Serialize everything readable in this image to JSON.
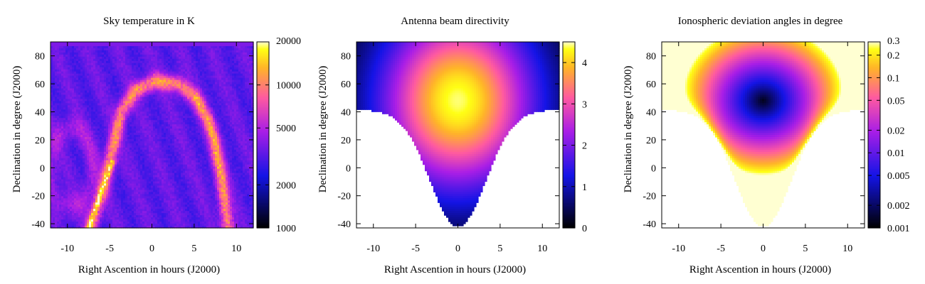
{
  "chart_data": [
    {
      "type": "heatmap",
      "title": "Sky temperature in K",
      "xlabel": "Right Ascention in hours (J2000)",
      "ylabel": "Declination in degree (J2000)",
      "xlim": [
        -12,
        12
      ],
      "ylim": [
        -43,
        90
      ],
      "xticks": [
        -10,
        -5,
        0,
        5,
        10
      ],
      "yticks": [
        -40,
        -20,
        0,
        20,
        40,
        60,
        80
      ],
      "colorbar": {
        "scale": "log",
        "range": [
          1000,
          20000
        ],
        "ticks": [
          1000,
          2000,
          5000,
          10000,
          20000
        ],
        "colormap": "black-blue-magenta-orange-yellow-white"
      },
      "features": [
        "Galactic plane band reaching ~20000 K near RA -6 h, Dec -40 to 0",
        "Arc of elevated temperature through RA 0 h, Dec 60",
        "Background ~2000 K"
      ]
    },
    {
      "type": "heatmap",
      "title": "Antenna beam directivity",
      "xlabel": "Right Ascention in hours (J2000)",
      "ylabel": "Declination in degree (J2000)",
      "xlim": [
        -12,
        12
      ],
      "ylim": [
        -43,
        90
      ],
      "xticks": [
        -10,
        -5,
        0,
        5,
        10
      ],
      "yticks": [
        -40,
        -20,
        0,
        20,
        40,
        60,
        80
      ],
      "colorbar": {
        "scale": "linear",
        "range": [
          0,
          4.5
        ],
        "ticks": [
          0,
          1,
          2,
          3,
          4
        ],
        "colormap": "black-blue-magenta-orange-yellow-white"
      },
      "features": [
        "Peak directivity ~4.4 at RA 0 h, Dec ~48",
        "Region below the horizon left blank (white)"
      ]
    },
    {
      "type": "heatmap",
      "title": "Ionospheric deviation angles in degree",
      "xlabel": "Right Ascention in hours (J2000)",
      "ylabel": "Declination in degree (J2000)",
      "xlim": [
        -12,
        12
      ],
      "ylim": [
        -43,
        90
      ],
      "xticks": [
        -10,
        -5,
        0,
        5,
        10
      ],
      "yticks": [
        -40,
        -20,
        0,
        20,
        40,
        60,
        80
      ],
      "colorbar": {
        "scale": "log",
        "range": [
          0.001,
          0.3
        ],
        "ticks": [
          0.001,
          0.002,
          0.005,
          0.01,
          0.02,
          0.05,
          0.1,
          0.2,
          0.3
        ],
        "colormap": "black-blue-magenta-orange-yellow-white"
      },
      "features": [
        "Minimum deviation ~0.001 at RA 0 h, Dec ~48",
        "Deviation rises above 0.3 toward the horizon"
      ]
    }
  ]
}
